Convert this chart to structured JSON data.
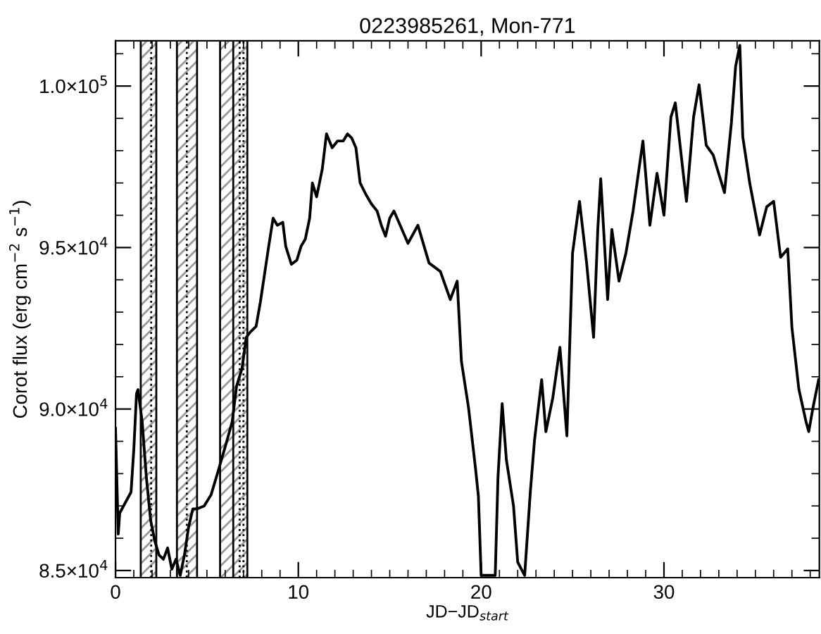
{
  "chart_data": {
    "type": "line",
    "title": "0223985261, Mon-771",
    "xlabel": "JD−JD$_{start}$",
    "ylabel": "Corot flux (erg cm$^{−2}$ s$^{−1}$)",
    "x": [
      0.0,
      0.15,
      0.23,
      0.85,
      1.0,
      1.15,
      1.23,
      1.46,
      1.69,
      1.92,
      2.15,
      2.38,
      2.62,
      2.85,
      3.08,
      3.31,
      3.54,
      3.77,
      4.0,
      4.23,
      4.46,
      4.85,
      5.23,
      5.62,
      6.0,
      6.38,
      6.62,
      6.92,
      7.15,
      7.38,
      7.69,
      7.92,
      8.15,
      8.38,
      8.62,
      8.85,
      9.15,
      9.31,
      9.62,
      9.92,
      10.15,
      10.38,
      10.62,
      10.77,
      11.0,
      11.31,
      11.54,
      11.85,
      12.15,
      12.46,
      12.69,
      12.92,
      13.15,
      13.38,
      13.69,
      14.0,
      14.31,
      14.54,
      14.77,
      15.0,
      15.23,
      16.0,
      16.54,
      17.15,
      17.77,
      18.31,
      18.69,
      18.92,
      19.31,
      19.69,
      19.85,
      20.0,
      20.23,
      20.77,
      20.92,
      21.15,
      21.38,
      21.77,
      22.0,
      22.38,
      22.69,
      22.92,
      23.31,
      23.54,
      23.92,
      24.31,
      24.69,
      25.0,
      25.38,
      25.77,
      26.15,
      26.38,
      26.54,
      26.92,
      27.15,
      27.54,
      27.92,
      28.31,
      28.85,
      29.23,
      29.62,
      30.0,
      30.38,
      30.62,
      31.0,
      31.23,
      31.62,
      31.92,
      32.31,
      32.69,
      32.92,
      33.31,
      33.69,
      33.92,
      34.15,
      34.31,
      34.69,
      35.23,
      35.62,
      36.0,
      36.38,
      36.77,
      37.0,
      37.38,
      37.77,
      37.92,
      38.15,
      38.46
    ],
    "series": [
      {
        "color": "#000000",
        "values": [
          89400,
          86130,
          86780,
          87430,
          88740,
          90480,
          90600,
          89600,
          87870,
          86560,
          85910,
          85480,
          85350,
          85700,
          85040,
          85350,
          84850,
          85480,
          86350,
          86910,
          86910,
          87000,
          87350,
          88090,
          88830,
          89600,
          90700,
          91260,
          92220,
          92390,
          92560,
          93300,
          94170,
          95040,
          95910,
          95690,
          95780,
          95040,
          94480,
          94610,
          95040,
          95260,
          95910,
          97000,
          96570,
          97430,
          98520,
          98090,
          98300,
          98300,
          98520,
          98390,
          98090,
          97000,
          96650,
          96350,
          96130,
          95690,
          95350,
          95910,
          96130,
          95130,
          95690,
          94520,
          94260,
          93390,
          93960,
          91480,
          90040,
          88170,
          87300,
          84850,
          84850,
          84850,
          87870,
          90170,
          88430,
          87000,
          85260,
          84850,
          87430,
          89040,
          90910,
          89300,
          90350,
          91910,
          89170,
          94830,
          96430,
          94520,
          92220,
          95560,
          97130,
          93390,
          95560,
          93960,
          94830,
          96130,
          98300,
          95690,
          97300,
          96000,
          99040,
          99480,
          97570,
          96430,
          99040,
          100040,
          98170,
          97870,
          97430,
          96700,
          98870,
          100610,
          101260,
          98430,
          97000,
          95390,
          96260,
          96430,
          94700,
          94960,
          92520,
          90610,
          89610,
          89300,
          90040,
          90910
        ]
      }
    ],
    "xlim": [
      0,
      38.5
    ],
    "xticks": [
      0,
      {
        "value": 1,
        "label": null
      },
      {
        "value": 2,
        "label": null
      },
      {
        "value": 3,
        "label": null
      },
      {
        "value": 4,
        "label": null
      },
      {
        "value": 5,
        "label": null
      },
      {
        "value": 6,
        "label": null
      },
      {
        "value": 7,
        "label": null
      },
      {
        "value": 8,
        "label": null
      },
      {
        "value": 9,
        "label": null
      },
      10,
      {
        "value": 11,
        "label": null
      },
      {
        "value": 12,
        "label": null
      },
      {
        "value": 13,
        "label": null
      },
      {
        "value": 14,
        "label": null
      },
      {
        "value": 15,
        "label": null
      },
      {
        "value": 16,
        "label": null
      },
      {
        "value": 17,
        "label": null
      },
      {
        "value": 18,
        "label": null
      },
      {
        "value": 19,
        "label": null
      },
      20,
      {
        "value": 21,
        "label": null
      },
      {
        "value": 22,
        "label": null
      },
      {
        "value": 23,
        "label": null
      },
      {
        "value": 24,
        "label": null
      },
      {
        "value": 25,
        "label": null
      },
      {
        "value": 26,
        "label": null
      },
      {
        "value": 27,
        "label": null
      },
      {
        "value": 28,
        "label": null
      },
      {
        "value": 29,
        "label": null
      },
      30,
      {
        "value": 31,
        "label": null
      },
      {
        "value": 32,
        "label": null
      },
      {
        "value": 33,
        "label": null
      },
      {
        "value": 34,
        "label": null
      },
      {
        "value": 35,
        "label": null
      },
      {
        "value": 36,
        "label": null
      },
      {
        "value": 37,
        "label": null
      },
      {
        "value": 38,
        "label": null
      }
    ],
    "ylim": [
      84780,
      101400
    ],
    "yticks": [
      {
        "value": 85000,
        "label": "8.5×10$^{4}$"
      },
      {
        "value": 86000,
        "label": null
      },
      {
        "value": 87000,
        "label": null
      },
      {
        "value": 88000,
        "label": null
      },
      {
        "value": 89000,
        "label": null
      },
      {
        "value": 90000,
        "label": "9.0×10$^{4}$"
      },
      {
        "value": 91000,
        "label": null
      },
      {
        "value": 92000,
        "label": null
      },
      {
        "value": 93000,
        "label": null
      },
      {
        "value": 94000,
        "label": null
      },
      {
        "value": 95000,
        "label": "9.5×10$^{4}$"
      },
      {
        "value": 96000,
        "label": null
      },
      {
        "value": 97000,
        "label": null
      },
      {
        "value": 98000,
        "label": null
      },
      {
        "value": 99000,
        "label": null
      },
      {
        "value": 100000,
        "label": "1.0×10$^{5}$"
      },
      {
        "value": 101000,
        "label": null
      }
    ],
    "bands": [
      {
        "axis": "x",
        "from": 1.38,
        "to": 2.23,
        "color": "#999999"
      },
      {
        "axis": "x",
        "from": 3.36,
        "to": 4.46,
        "color": "#999999"
      },
      {
        "axis": "x",
        "from": 5.72,
        "to": 6.44,
        "color": "#999999"
      },
      {
        "axis": "x",
        "from": 6.44,
        "to": 7.21,
        "color": "#999999"
      }
    ],
    "ref_lines": [
      {
        "axis": "x",
        "value": 1.38,
        "line_style": "solid",
        "color": "#000000"
      },
      {
        "axis": "x",
        "value": 1.95,
        "line_style": "dotted",
        "color": "#000000"
      },
      {
        "axis": "x",
        "value": 2.23,
        "line_style": "solid",
        "color": "#000000"
      },
      {
        "axis": "x",
        "value": 3.36,
        "line_style": "solid",
        "color": "#000000"
      },
      {
        "axis": "x",
        "value": 3.9,
        "line_style": "dotted",
        "color": "#000000"
      },
      {
        "axis": "x",
        "value": 4.46,
        "line_style": "solid",
        "color": "#000000"
      },
      {
        "axis": "x",
        "value": 5.72,
        "line_style": "solid",
        "color": "#000000"
      },
      {
        "axis": "x",
        "value": 6.44,
        "line_style": "solid",
        "color": "#000000"
      },
      {
        "axis": "x",
        "value": 6.79,
        "line_style": "dotted",
        "color": "#000000"
      },
      {
        "axis": "x",
        "value": 7.0,
        "line_style": "dotted",
        "color": "#000000"
      },
      {
        "axis": "x",
        "value": 7.21,
        "line_style": "solid",
        "color": "#000000"
      }
    ],
    "grid": false,
    "legend": false,
    "marker": "none",
    "line_style": "solid"
  }
}
